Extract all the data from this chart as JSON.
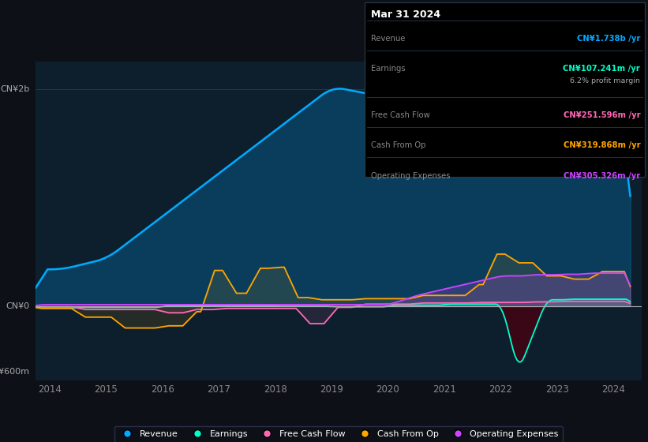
{
  "bg_color": "#0d1117",
  "plot_bg_color": "#0d1f2d",
  "revenue_color": "#00aaff",
  "earnings_color": "#00ffcc",
  "fcf_color": "#ff69b4",
  "cashfromop_color": "#ffa500",
  "opex_color": "#cc44ff",
  "xlabel_years": [
    "2014",
    "2015",
    "2016",
    "2017",
    "2018",
    "2019",
    "2020",
    "2021",
    "2022",
    "2023",
    "2024"
  ],
  "tooltip": {
    "date": "Mar 31 2024",
    "revenue_label": "Revenue",
    "revenue_val": "CN¥1.738b /yr",
    "earnings_label": "Earnings",
    "earnings_val": "CN¥107.241m /yr",
    "margin_val": "6.2% profit margin",
    "fcf_label": "Free Cash Flow",
    "fcf_val": "CN¥251.596m /yr",
    "cashfromop_label": "Cash From Op",
    "cashfromop_val": "CN¥319.868m /yr",
    "opex_label": "Operating Expenses",
    "opex_val": "CN¥305.326m /yr"
  },
  "legend": [
    {
      "label": "Revenue",
      "color": "#00aaff"
    },
    {
      "label": "Earnings",
      "color": "#00ffcc"
    },
    {
      "label": "Free Cash Flow",
      "color": "#ff69b4"
    },
    {
      "label": "Cash From Op",
      "color": "#ffa500"
    },
    {
      "label": "Operating Expenses",
      "color": "#cc44ff"
    }
  ]
}
